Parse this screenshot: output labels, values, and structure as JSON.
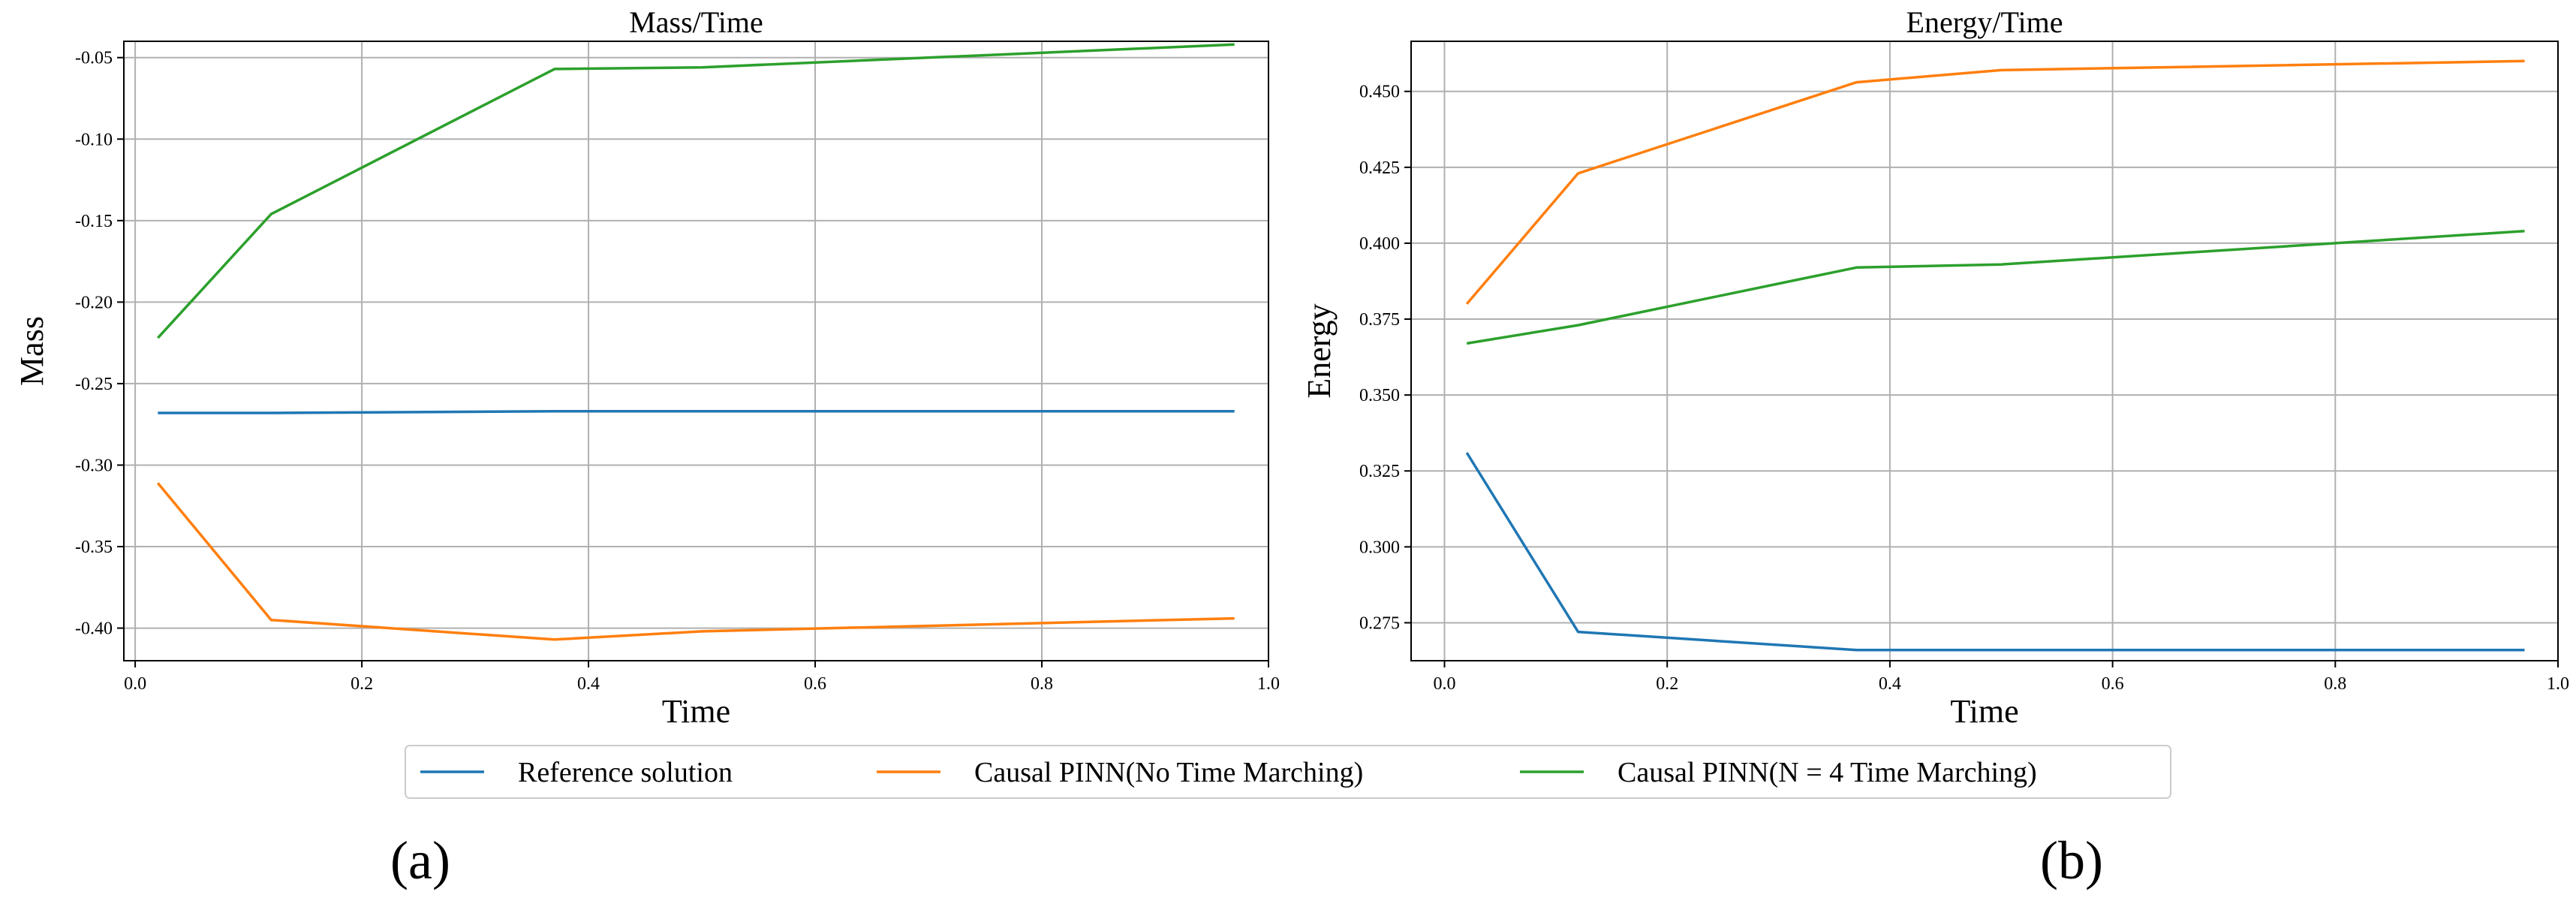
{
  "chart_data": [
    {
      "type": "line",
      "panel_label": "(a)",
      "title": "Mass/Time",
      "xlabel": "Time",
      "ylabel": "Mass",
      "xlim": [
        -0.01,
        1.0
      ],
      "ylim": [
        -0.42,
        -0.04
      ],
      "xticks": [
        0.0,
        0.2,
        0.4,
        0.6,
        0.8,
        1.0
      ],
      "xtick_labels": [
        "0.0",
        "0.2",
        "0.4",
        "0.6",
        "0.8",
        "1.0"
      ],
      "yticks": [
        -0.4,
        -0.35,
        -0.3,
        -0.25,
        -0.2,
        -0.15,
        -0.1,
        -0.05
      ],
      "ytick_labels": [
        "-0.40",
        "-0.35",
        "-0.30",
        "-0.25",
        "-0.20",
        "-0.15",
        "-0.10",
        "-0.05"
      ],
      "grid": true,
      "series": [
        {
          "name": "Reference solution",
          "color": "#1f77b4",
          "x": [
            0.02,
            0.12,
            0.37,
            0.5,
            0.97
          ],
          "y": [
            -0.268,
            -0.268,
            -0.267,
            -0.267,
            -0.267
          ]
        },
        {
          "name": "Causal PINN(No Time Marching)",
          "color": "#ff7f0e",
          "x": [
            0.02,
            0.12,
            0.37,
            0.5,
            0.97
          ],
          "y": [
            -0.311,
            -0.395,
            -0.407,
            -0.402,
            -0.394
          ]
        },
        {
          "name": "Causal PINN(N = 4 Time Marching)",
          "color": "#2ca02c",
          "x": [
            0.02,
            0.12,
            0.37,
            0.5,
            0.97
          ],
          "y": [
            -0.222,
            -0.146,
            -0.057,
            -0.056,
            -0.042
          ]
        }
      ]
    },
    {
      "type": "line",
      "panel_label": "(b)",
      "title": "Energy/Time",
      "xlabel": "Time",
      "ylabel": "Energy",
      "xlim": [
        -0.03,
        1.0
      ],
      "ylim": [
        0.2625,
        0.4665
      ],
      "xticks": [
        0.0,
        0.2,
        0.4,
        0.6,
        0.8,
        1.0
      ],
      "xtick_labels": [
        "0.0",
        "0.2",
        "0.4",
        "0.6",
        "0.8",
        "1.0"
      ],
      "yticks": [
        0.275,
        0.3,
        0.325,
        0.35,
        0.375,
        0.4,
        0.425,
        0.45
      ],
      "ytick_labels": [
        "0.275",
        "0.300",
        "0.325",
        "0.350",
        "0.375",
        "0.400",
        "0.425",
        "0.450"
      ],
      "grid": true,
      "series": [
        {
          "name": "Reference solution",
          "color": "#1f77b4",
          "x": [
            0.02,
            0.12,
            0.37,
            0.5,
            0.97
          ],
          "y": [
            0.331,
            0.272,
            0.266,
            0.266,
            0.266
          ]
        },
        {
          "name": "Causal PINN(No Time Marching)",
          "color": "#ff7f0e",
          "x": [
            0.02,
            0.12,
            0.37,
            0.5,
            0.97
          ],
          "y": [
            0.38,
            0.423,
            0.453,
            0.457,
            0.46
          ]
        },
        {
          "name": "Causal PINN(N = 4 Time Marching)",
          "color": "#2ca02c",
          "x": [
            0.02,
            0.12,
            0.37,
            0.5,
            0.97
          ],
          "y": [
            0.367,
            0.373,
            0.392,
            0.393,
            0.404
          ]
        }
      ]
    }
  ],
  "legend": {
    "placement": "bottom-center",
    "entries": [
      {
        "label": "Reference solution",
        "color": "#1f77b4"
      },
      {
        "label": "Causal PINN(No Time Marching)",
        "color": "#ff7f0e"
      },
      {
        "label": "Causal PINN(N = 4 Time Marching)",
        "color": "#2ca02c"
      }
    ]
  }
}
